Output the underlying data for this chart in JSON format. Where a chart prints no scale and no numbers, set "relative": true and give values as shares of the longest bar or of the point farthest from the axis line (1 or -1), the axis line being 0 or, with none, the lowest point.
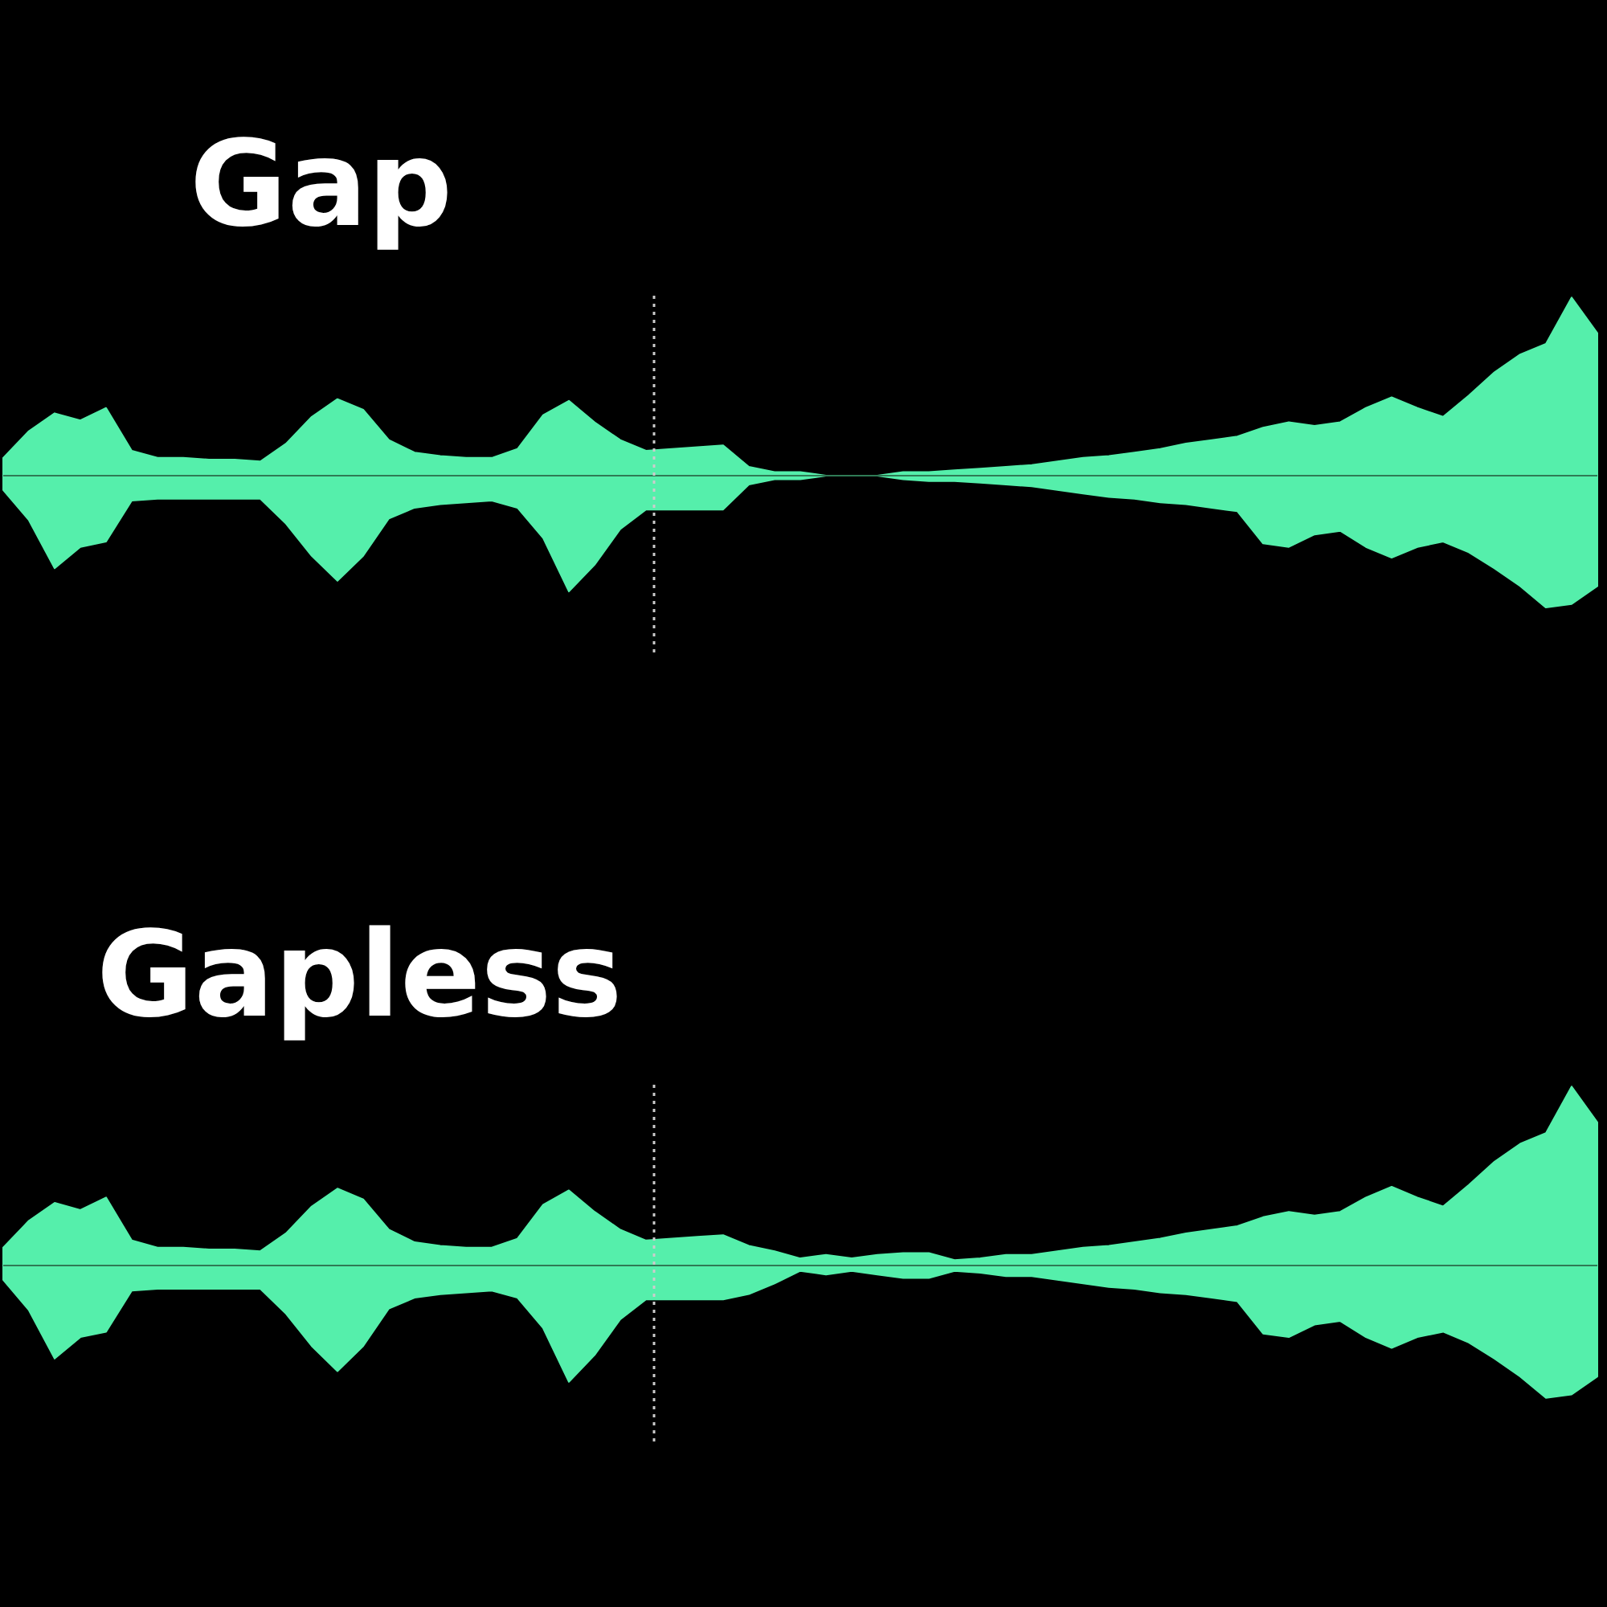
{
  "chart_data": [
    {
      "type": "area",
      "title": "Gap",
      "relative": true,
      "ref_lines": [
        {
          "axis": "y",
          "value": 0,
          "color": "#2f7a55"
        }
      ],
      "categories": [
        null,
        null,
        null,
        null,
        null,
        null,
        null,
        null,
        null,
        null,
        null,
        null,
        null,
        null,
        null,
        null,
        null,
        null,
        null,
        null,
        null,
        null,
        null,
        null,
        null,
        null,
        null,
        null,
        null,
        null,
        null,
        null,
        null,
        null,
        null,
        null,
        null,
        null,
        null,
        null,
        null,
        null,
        null,
        null,
        null,
        null,
        null,
        null,
        null,
        null,
        null,
        null,
        null,
        null,
        null,
        null,
        null,
        null,
        null,
        null,
        null,
        null,
        null
      ],
      "series": [
        {
          "color": "#55efab",
          "values": [
            0.1,
            0.25,
            0.35,
            0.31,
            0.38,
            0.14,
            0.1,
            0.1,
            0.09,
            0.09,
            0.08,
            0.18,
            0.33,
            0.43,
            0.37,
            0.2,
            0.13,
            0.11,
            0.1,
            0.1,
            0.15,
            0.34,
            0.42,
            0.3,
            0.2,
            0.14,
            0.15,
            0.16,
            0.17,
            0.05,
            0.02,
            0.02,
            0,
            0,
            0,
            0.02,
            0.02,
            0.03,
            0.04,
            0.05,
            0.06,
            0.08,
            0.1,
            0.11,
            0.13,
            0.15,
            0.18,
            0.2,
            0.22,
            0.27,
            0.3,
            0.28,
            0.3,
            0.38,
            0.44,
            0.38,
            0.33,
            0.45,
            0.58,
            0.68,
            0.74,
            1.0,
            0.8
          ]
        },
        {
          "color": "#55efab",
          "values": [
            -0.08,
            -0.25,
            -0.52,
            -0.4,
            -0.37,
            -0.14,
            -0.13,
            -0.13,
            -0.13,
            -0.13,
            -0.13,
            -0.27,
            -0.45,
            -0.59,
            -0.45,
            -0.24,
            -0.18,
            -0.16,
            -0.15,
            -0.14,
            -0.18,
            -0.35,
            -0.65,
            -0.5,
            -0.3,
            -0.19,
            -0.19,
            -0.19,
            -0.19,
            -0.05,
            -0.02,
            -0.02,
            0,
            0,
            0,
            -0.02,
            -0.03,
            -0.03,
            -0.04,
            -0.05,
            -0.06,
            -0.08,
            -0.1,
            -0.12,
            -0.13,
            -0.15,
            -0.16,
            -0.18,
            -0.2,
            -0.38,
            -0.4,
            -0.33,
            -0.31,
            -0.4,
            -0.46,
            -0.4,
            -0.37,
            -0.43,
            -0.52,
            -0.62,
            -0.74,
            -0.72,
            -0.62
          ]
        }
      ]
    },
    {
      "type": "area",
      "title": "Gapless",
      "relative": true,
      "ref_lines": [
        {
          "axis": "y",
          "value": 0,
          "color": "#2f7a55"
        }
      ],
      "categories": [
        null,
        null,
        null,
        null,
        null,
        null,
        null,
        null,
        null,
        null,
        null,
        null,
        null,
        null,
        null,
        null,
        null,
        null,
        null,
        null,
        null,
        null,
        null,
        null,
        null,
        null,
        null,
        null,
        null,
        null,
        null,
        null,
        null,
        null,
        null,
        null,
        null,
        null,
        null,
        null,
        null,
        null,
        null,
        null,
        null,
        null,
        null,
        null,
        null,
        null,
        null,
        null,
        null,
        null,
        null,
        null,
        null,
        null,
        null,
        null,
        null,
        null,
        null
      ],
      "series": [
        {
          "color": "#55efab",
          "values": [
            0.1,
            0.25,
            0.35,
            0.31,
            0.38,
            0.14,
            0.1,
            0.1,
            0.09,
            0.09,
            0.08,
            0.18,
            0.33,
            0.43,
            0.37,
            0.2,
            0.13,
            0.11,
            0.1,
            0.1,
            0.15,
            0.34,
            0.42,
            0.3,
            0.2,
            0.14,
            0.15,
            0.16,
            0.17,
            0.11,
            0.08,
            0.04,
            0.06,
            0.04,
            0.06,
            0.07,
            0.07,
            0.03,
            0.04,
            0.06,
            0.06,
            0.08,
            0.1,
            0.11,
            0.13,
            0.15,
            0.18,
            0.2,
            0.22,
            0.27,
            0.3,
            0.28,
            0.3,
            0.38,
            0.44,
            0.38,
            0.33,
            0.45,
            0.58,
            0.68,
            0.74,
            1.0,
            0.8
          ]
        },
        {
          "color": "#55efab",
          "values": [
            -0.08,
            -0.25,
            -0.52,
            -0.4,
            -0.37,
            -0.14,
            -0.13,
            -0.13,
            -0.13,
            -0.13,
            -0.13,
            -0.27,
            -0.45,
            -0.59,
            -0.45,
            -0.24,
            -0.18,
            -0.16,
            -0.15,
            -0.14,
            -0.18,
            -0.35,
            -0.65,
            -0.5,
            -0.3,
            -0.19,
            -0.19,
            -0.19,
            -0.19,
            -0.16,
            -0.1,
            -0.03,
            -0.05,
            -0.03,
            -0.05,
            -0.07,
            -0.07,
            -0.03,
            -0.04,
            -0.06,
            -0.06,
            -0.08,
            -0.1,
            -0.12,
            -0.13,
            -0.15,
            -0.16,
            -0.18,
            -0.2,
            -0.38,
            -0.4,
            -0.33,
            -0.31,
            -0.4,
            -0.46,
            -0.4,
            -0.37,
            -0.43,
            -0.52,
            -0.62,
            -0.74,
            -0.72,
            -0.62
          ]
        }
      ]
    }
  ]
}
